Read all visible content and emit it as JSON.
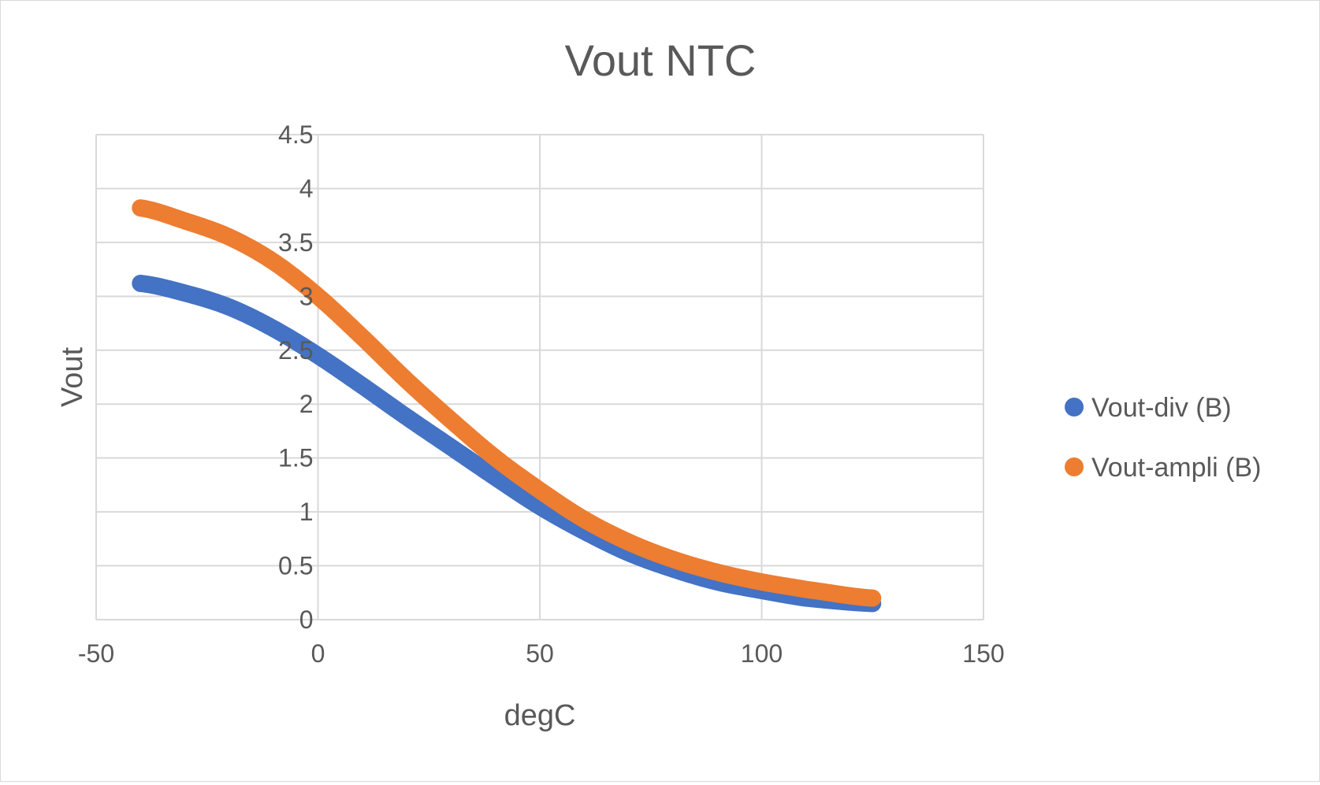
{
  "chart_data": {
    "type": "scatter",
    "title": "Vout NTC",
    "xlabel": "degC",
    "ylabel": "Vout",
    "xlim": [
      -50,
      150
    ],
    "ylim": [
      0,
      4.5
    ],
    "xticks": [
      "-50",
      "0",
      "50",
      "100",
      "150"
    ],
    "yticks": [
      "0",
      "0.5",
      "1",
      "1.5",
      "2",
      "2.5",
      "3",
      "3.5",
      "4",
      "4.5"
    ],
    "grid": true,
    "legend_position": "right",
    "series": [
      {
        "name": "Vout-div (B)",
        "color": "#4472c4",
        "x": [
          -40,
          -30,
          -20,
          -10,
          0,
          10,
          20,
          30,
          40,
          50,
          60,
          70,
          80,
          90,
          100,
          110,
          125
        ],
        "y": [
          3.12,
          3.03,
          2.9,
          2.7,
          2.45,
          2.17,
          1.88,
          1.6,
          1.32,
          1.05,
          0.82,
          0.62,
          0.47,
          0.35,
          0.27,
          0.2,
          0.15
        ]
      },
      {
        "name": "Vout-ampli (B)",
        "color": "#ed7d31",
        "x": [
          -40,
          -30,
          -20,
          -10,
          0,
          10,
          20,
          30,
          40,
          50,
          60,
          70,
          80,
          90,
          100,
          110,
          125
        ],
        "y": [
          3.82,
          3.7,
          3.55,
          3.32,
          3.0,
          2.62,
          2.22,
          1.85,
          1.5,
          1.2,
          0.93,
          0.72,
          0.56,
          0.44,
          0.35,
          0.28,
          0.2
        ]
      }
    ]
  }
}
